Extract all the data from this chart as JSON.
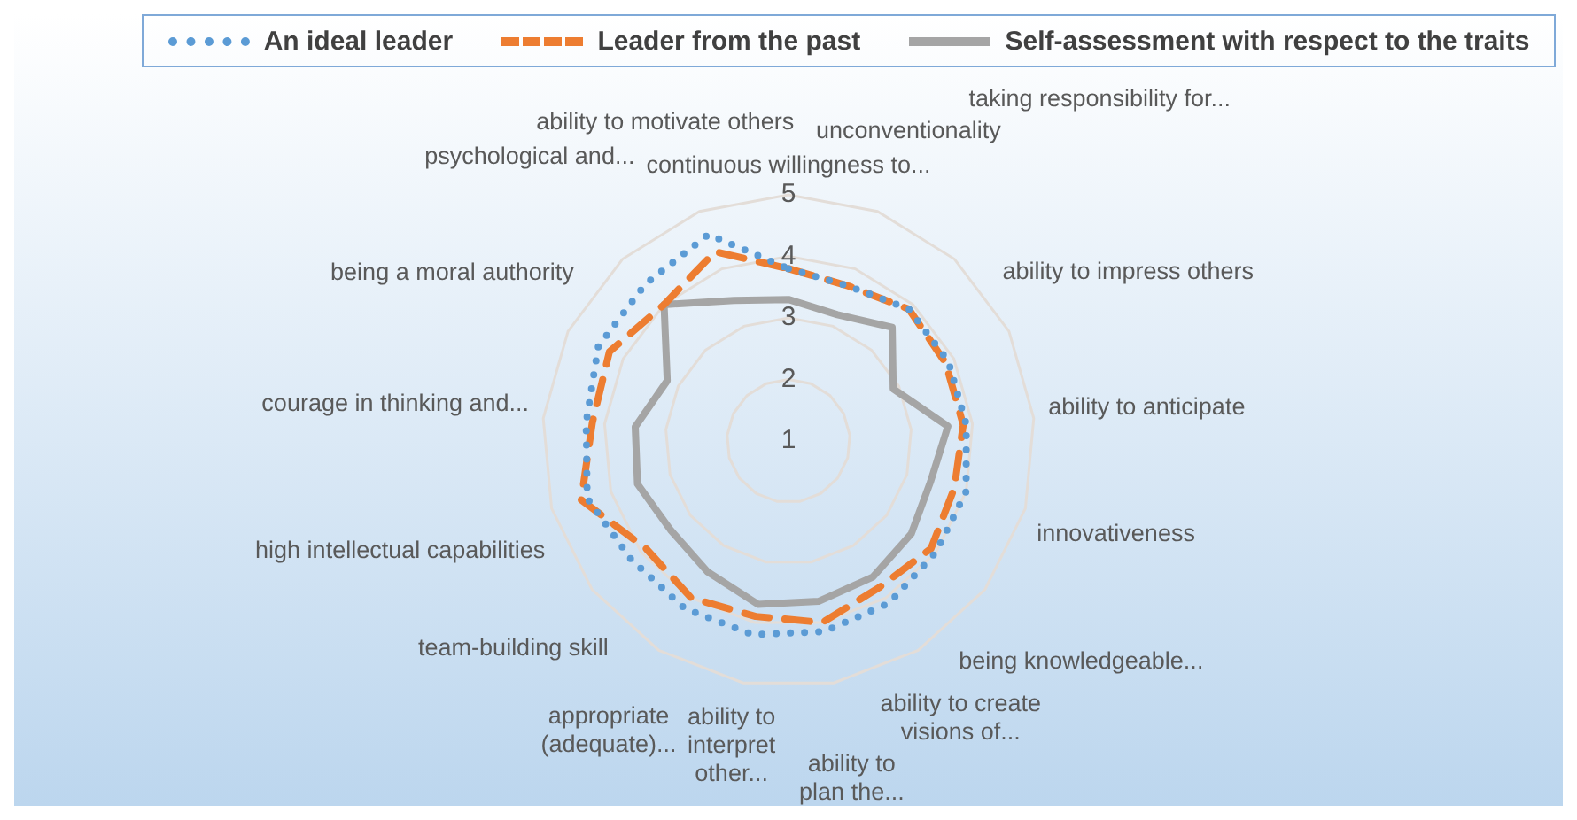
{
  "chart_data": {
    "type": "radar",
    "categories": [
      "continuous willingness to...",
      "unconventionality",
      "taking responsibility for...",
      "ability to impress others",
      "ability to anticipate",
      "innovativeness",
      "being knowledgeable...",
      "ability to create visions of...",
      "ability to plan the...",
      "ability to interpret other...",
      "appropriate (adequate)...",
      "team-building skill",
      "high intellectual capabilities",
      "courage in thinking and...",
      "being a moral authority",
      "psychological and...",
      "ability to motivate others"
    ],
    "series": [
      {
        "name": "An ideal leader",
        "color": "#5b9bd5",
        "line_style": "dotted",
        "values": [
          3.8,
          3.7,
          3.9,
          3.9,
          3.9,
          4.0,
          4.0,
          4.1,
          4.15,
          4.2,
          4.2,
          4.2,
          4.4,
          4.3,
          4.45,
          4.45,
          4.6
        ]
      },
      {
        "name": "Leader from the past",
        "color": "#ed7d31",
        "line_style": "dashed",
        "values": [
          3.8,
          3.7,
          3.9,
          3.85,
          3.85,
          3.8,
          3.9,
          3.8,
          4.0,
          3.9,
          4.0,
          3.9,
          4.5,
          4.2,
          4.25,
          4.0,
          4.3
        ]
      },
      {
        "name": "Self-assessment with respect to the traits",
        "color": "#a5a5a5",
        "line_style": "solid",
        "values": [
          3.3,
          3.2,
          3.5,
          2.9,
          3.6,
          3.4,
          3.5,
          3.6,
          3.65,
          3.7,
          3.5,
          3.4,
          3.55,
          3.5,
          3.2,
          4.0,
          3.45
        ]
      }
    ],
    "ylim": [
      1,
      5
    ],
    "yticks": [
      1,
      2,
      3,
      4,
      5
    ],
    "grid": true,
    "legend": "top",
    "marker": "none"
  }
}
